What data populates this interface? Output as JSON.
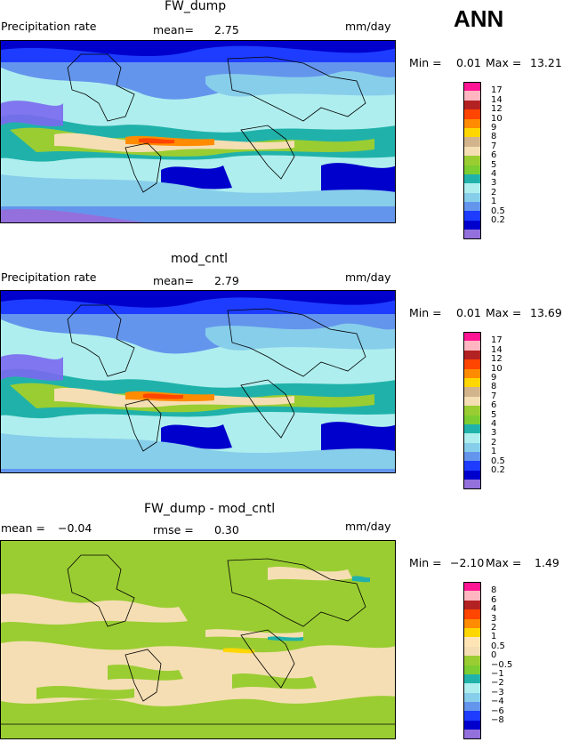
{
  "annotation": "ANN",
  "panels": [
    {
      "title": "FW_dump",
      "left_label": "Precipitation rate",
      "center_label": "mean=",
      "center_value": "2.75",
      "units": "mm/day",
      "minmax_min_label": "Min =",
      "minmax_min": "0.01",
      "minmax_max_label": "Max =",
      "minmax_max": "13.21"
    },
    {
      "title": "mod_cntl",
      "left_label": "Precipitation rate",
      "center_label": "mean=",
      "center_value": "2.79",
      "units": "mm/day",
      "minmax_min_label": "Min =",
      "minmax_min": "0.01",
      "minmax_max_label": "Max =",
      "minmax_max": "13.69"
    },
    {
      "title": "FW_dump - mod_cntl",
      "left_label": "mean =",
      "left_value": "−0.04",
      "center_label": "rmse =",
      "center_value": "0.30",
      "units": "mm/day",
      "minmax_min_label": "Min =",
      "minmax_min": "−2.10",
      "minmax_max_label": "Max =",
      "minmax_max": "1.49"
    }
  ],
  "colorbars": {
    "precip": {
      "ticks": [
        "17",
        "14",
        "12",
        "10",
        "9",
        "8",
        "7",
        "6",
        "5",
        "4",
        "3",
        "2",
        "1",
        "0.5",
        "0.2"
      ],
      "colors": [
        "#ff1493",
        "#ffb6c1",
        "#b22222",
        "#ff4500",
        "#ff8c00",
        "#ffd700",
        "#d2b48c",
        "#f5deb3",
        "#9acd32",
        "#7ccd32",
        "#20b2aa",
        "#afeeee",
        "#87ceeb",
        "#6495ed",
        "#1e3cff",
        "#0000cd",
        "#9370db"
      ]
    },
    "diff": {
      "ticks": [
        "8",
        "6",
        "4",
        "3",
        "2",
        "1",
        "0.5",
        "0",
        "−0.5",
        "−1",
        "−2",
        "−3",
        "−4",
        "−6",
        "−8"
      ],
      "colors": [
        "#ff1493",
        "#ffb6c1",
        "#b22222",
        "#ff4500",
        "#ff8c00",
        "#ffd700",
        "#ffe4b5",
        "#f5deb3",
        "#9acd32",
        "#7ccd32",
        "#20b2aa",
        "#afeeee",
        "#87ceeb",
        "#6495ed",
        "#1e3cff",
        "#0000cd",
        "#9370db"
      ]
    }
  },
  "chart_data": [
    {
      "type": "heatmap",
      "title": "FW_dump",
      "variable": "Precipitation rate",
      "units": "mm/day",
      "mean": 2.75,
      "min": 0.01,
      "max": 13.21,
      "contour_levels": [
        0.2,
        0.5,
        1,
        2,
        3,
        4,
        5,
        6,
        7,
        8,
        9,
        10,
        12,
        14,
        17
      ]
    },
    {
      "type": "heatmap",
      "title": "mod_cntl",
      "variable": "Precipitation rate",
      "units": "mm/day",
      "mean": 2.79,
      "min": 0.01,
      "max": 13.69,
      "contour_levels": [
        0.2,
        0.5,
        1,
        2,
        3,
        4,
        5,
        6,
        7,
        8,
        9,
        10,
        12,
        14,
        17
      ]
    },
    {
      "type": "heatmap",
      "title": "FW_dump - mod_cntl",
      "units": "mm/day",
      "mean": -0.04,
      "rmse": 0.3,
      "min": -2.1,
      "max": 1.49,
      "contour_levels": [
        -8,
        -6,
        -4,
        -3,
        -2,
        -1,
        -0.5,
        0,
        0.5,
        1,
        2,
        3,
        4,
        6,
        8
      ]
    }
  ]
}
